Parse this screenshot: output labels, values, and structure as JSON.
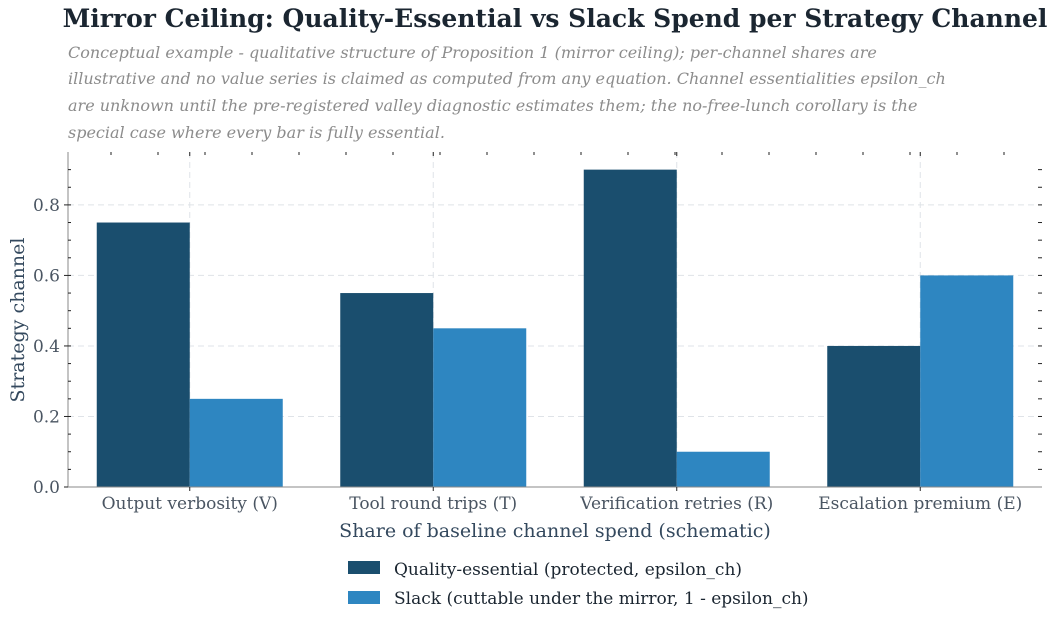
{
  "chart_data": {
    "type": "bar",
    "title": "Mirror Ceiling: Quality-Essential vs Slack Spend per Strategy Channel",
    "subtitle_lines": [
      "Conceptual example - qualitative structure of Proposition 1 (mirror ceiling); per-channel shares are",
      "illustrative and no value series is claimed as computed from any equation. Channel essentialities epsilon_ch",
      "are unknown until the pre-registered valley diagnostic estimates them; the no-free-lunch corollary is the",
      "special case where every bar is fully essential."
    ],
    "categories": [
      "Output verbosity (V)",
      "Tool round trips (T)",
      "Verification retries (R)",
      "Escalation premium (E)"
    ],
    "series": [
      {
        "name": "Quality-essential (protected, epsilon_ch)",
        "color": "#1a4e6e",
        "values": [
          0.75,
          0.55,
          0.9,
          0.4
        ]
      },
      {
        "name": "Slack (cuttable under the mirror, 1 - epsilon_ch)",
        "color": "#2e86c1",
        "values": [
          0.25,
          0.45,
          0.1,
          0.6
        ]
      }
    ],
    "xlabel": "Share of baseline channel spend (schematic)",
    "ylabel": "Strategy channel",
    "ylim": [
      0,
      0.95
    ],
    "yticks": [
      "0.0",
      "0.2",
      "0.4",
      "0.6",
      "0.8"
    ],
    "grid": true,
    "legend_position": "bottom-center"
  }
}
